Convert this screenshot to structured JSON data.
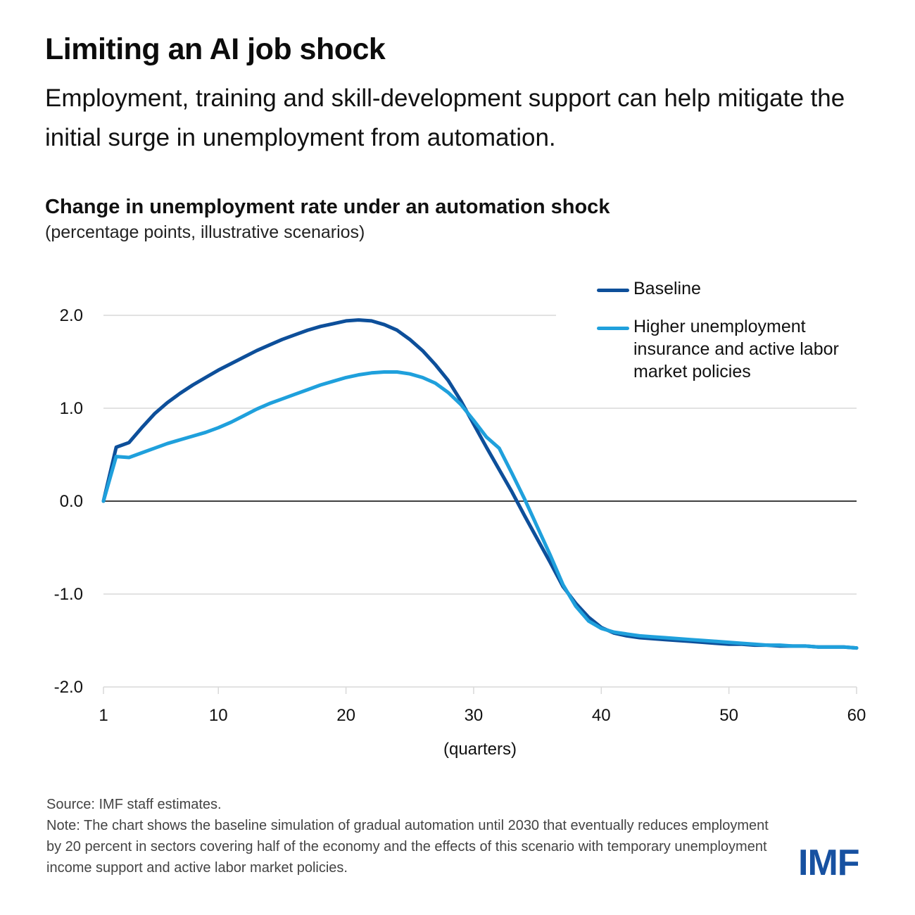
{
  "header": {
    "title": "Limiting an AI job shock",
    "subtitle": "Employment, training and skill-development support can help mitigate the initial surge in unemployment from automation."
  },
  "chart_data": {
    "type": "line",
    "title": "Change in unemployment rate under an automation shock",
    "subtitle": "(percentage points, illustrative scenarios)",
    "xlabel": "(quarters)",
    "ylabel": "",
    "xlim": [
      1,
      60
    ],
    "ylim": [
      -2.0,
      2.0
    ],
    "x_ticks": [
      1,
      10,
      20,
      30,
      40,
      50,
      60
    ],
    "y_ticks": [
      2.0,
      1.0,
      0.0,
      -1.0,
      -2.0
    ],
    "y_tick_labels": [
      "2.0",
      "1.0",
      "0.0",
      "-1.0",
      "-2.0"
    ],
    "grid": "horizontal",
    "legend_position": "top-right",
    "x": [
      1,
      2,
      3,
      4,
      5,
      6,
      7,
      8,
      9,
      10,
      11,
      12,
      13,
      14,
      15,
      16,
      17,
      18,
      19,
      20,
      21,
      22,
      23,
      24,
      25,
      26,
      27,
      28,
      29,
      30,
      31,
      32,
      33,
      34,
      35,
      36,
      37,
      38,
      39,
      40,
      41,
      42,
      43,
      44,
      45,
      46,
      47,
      48,
      49,
      50,
      51,
      52,
      53,
      54,
      55,
      56,
      57,
      58,
      59,
      60
    ],
    "series": [
      {
        "name": "Baseline",
        "color": "#0d4f9a",
        "values": [
          0.0,
          0.58,
          0.63,
          0.79,
          0.94,
          1.06,
          1.16,
          1.25,
          1.33,
          1.41,
          1.48,
          1.55,
          1.62,
          1.68,
          1.74,
          1.79,
          1.84,
          1.88,
          1.91,
          1.94,
          1.95,
          1.94,
          1.9,
          1.84,
          1.74,
          1.62,
          1.47,
          1.3,
          1.08,
          0.83,
          0.58,
          0.34,
          0.1,
          -0.16,
          -0.41,
          -0.66,
          -0.92,
          -1.1,
          -1.25,
          -1.36,
          -1.42,
          -1.45,
          -1.47,
          -1.48,
          -1.49,
          -1.5,
          -1.51,
          -1.52,
          -1.53,
          -1.54,
          -1.54,
          -1.55,
          -1.55,
          -1.56,
          -1.56,
          -1.56,
          -1.57,
          -1.57,
          -1.57,
          -1.58
        ]
      },
      {
        "name": "Higher unemployment insurance and active labor market policies",
        "color": "#1fa0dc",
        "values": [
          0.0,
          0.48,
          0.47,
          0.52,
          0.57,
          0.62,
          0.66,
          0.7,
          0.74,
          0.79,
          0.85,
          0.92,
          0.99,
          1.05,
          1.1,
          1.15,
          1.2,
          1.25,
          1.29,
          1.33,
          1.36,
          1.38,
          1.39,
          1.39,
          1.37,
          1.33,
          1.27,
          1.17,
          1.04,
          0.87,
          0.69,
          0.57,
          0.3,
          0.02,
          -0.28,
          -0.58,
          -0.9,
          -1.13,
          -1.29,
          -1.37,
          -1.41,
          -1.43,
          -1.45,
          -1.46,
          -1.47,
          -1.48,
          -1.49,
          -1.5,
          -1.51,
          -1.52,
          -1.53,
          -1.54,
          -1.55,
          -1.55,
          -1.56,
          -1.56,
          -1.57,
          -1.57,
          -1.57,
          -1.58
        ]
      }
    ]
  },
  "legend": {
    "items": [
      {
        "label": "Baseline",
        "color": "#0d4f9a"
      },
      {
        "label": "Higher unemployment insurance and active labor market policies",
        "color": "#1fa0dc"
      }
    ]
  },
  "footer": {
    "source": "Source: IMF staff estimates.",
    "note": "Note: The chart shows the baseline simulation of gradual automation until 2030 that eventually reduces employment by 20 percent in sectors covering half of the economy and the effects of this scenario with temporary unemployment income support and active labor market policies."
  },
  "logo": {
    "text": "IMF",
    "color": "#1751a1"
  }
}
